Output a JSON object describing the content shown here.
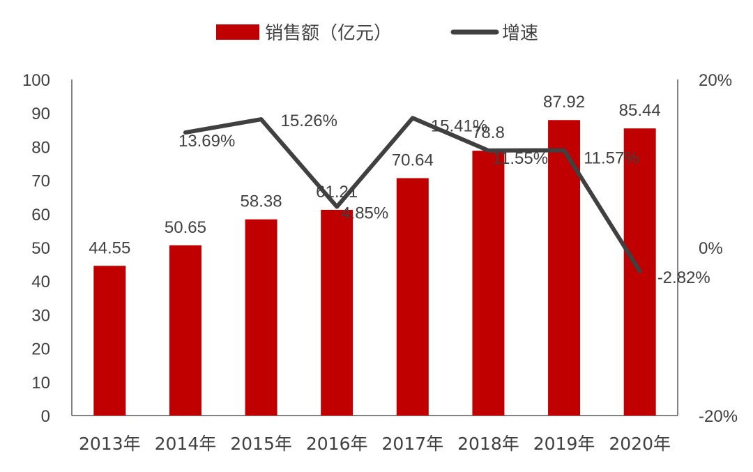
{
  "chart_data": {
    "type": "bar+line",
    "title": "",
    "categories": [
      "2013年",
      "2014年",
      "2015年",
      "2016年",
      "2017年",
      "2018年",
      "2019年",
      "2020年"
    ],
    "series": [
      {
        "name": "销售额（亿元）",
        "type": "bar",
        "axis": "left",
        "color": "#c00000",
        "values": [
          44.55,
          50.65,
          58.38,
          61.21,
          70.64,
          78.8,
          87.92,
          85.44
        ],
        "labels": [
          "44.55",
          "50.65",
          "58.38",
          "61.21",
          "70.64",
          "78.8",
          "87.92",
          "85.44"
        ]
      },
      {
        "name": "增速",
        "type": "line",
        "axis": "right",
        "color": "#404040",
        "values": [
          null,
          13.69,
          15.26,
          4.85,
          15.41,
          11.55,
          11.57,
          -2.82
        ],
        "labels": [
          "",
          "13.69%",
          "15.26%",
          "4.85%",
          "15.41%",
          "11.55%",
          "11.57%",
          "-2.82%"
        ]
      }
    ],
    "y_left": {
      "min": 0,
      "max": 100,
      "ticks": [
        0,
        10,
        20,
        30,
        40,
        50,
        60,
        70,
        80,
        90,
        100
      ],
      "tick_labels": [
        "0",
        "10",
        "20",
        "30",
        "40",
        "50",
        "60",
        "70",
        "80",
        "90",
        "100"
      ]
    },
    "y_right": {
      "min": -20,
      "max": 20,
      "unit": "%",
      "ticks": [
        -20,
        0,
        20
      ],
      "tick_labels": [
        "-20%",
        "0%",
        "20%"
      ]
    },
    "legend": {
      "position": "top-center",
      "entries": [
        "销售额（亿元）",
        "增速"
      ]
    },
    "grid": false
  }
}
